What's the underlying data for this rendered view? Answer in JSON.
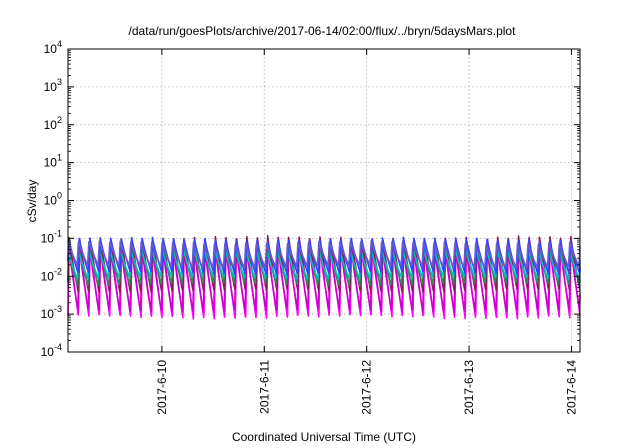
{
  "chart_data": {
    "type": "line",
    "title": "/data/run/goesPlots/archive/2017-06-14/02:00/flux/../bryn/5daysMars.plot",
    "xlabel": "Coordinated Universal Time (UTC)",
    "ylabel": "cSv/day",
    "y_scale": "log",
    "ylim": [
      0.0001,
      10000
    ],
    "y_ticks": [
      {
        "value": 0.0001,
        "base": "10",
        "exp": "-4"
      },
      {
        "value": 0.001,
        "base": "10",
        "exp": "-3"
      },
      {
        "value": 0.01,
        "base": "10",
        "exp": "-2"
      },
      {
        "value": 0.1,
        "base": "10",
        "exp": "-1"
      },
      {
        "value": 1,
        "base": "10",
        "exp": "0"
      },
      {
        "value": 10,
        "base": "10",
        "exp": "1"
      },
      {
        "value": 100,
        "base": "10",
        "exp": "2"
      },
      {
        "value": 1000,
        "base": "10",
        "exp": "3"
      },
      {
        "value": 10000,
        "base": "10",
        "exp": "4"
      }
    ],
    "xlim": [
      "2017-06-09 02:00",
      "2017-06-14 02:00"
    ],
    "x_ticks": [
      {
        "value": "2017-06-10 00:00",
        "label": "2017-6-10"
      },
      {
        "value": "2017-06-11 00:00",
        "label": "2017-6-11"
      },
      {
        "value": "2017-06-12 00:00",
        "label": "2017-6-12"
      },
      {
        "value": "2017-06-13 00:00",
        "label": "2017-6-13"
      },
      {
        "value": "2017-06-14 00:00",
        "label": "2017-6-14"
      }
    ],
    "grid": true,
    "legend": "none",
    "series": [
      {
        "color": "#ff00ff",
        "peak": 0.09,
        "trough": 0.0008,
        "phase": 0.0
      },
      {
        "color": "#cc00cc",
        "peak": 0.07,
        "trough": 0.0012,
        "phase": 0.05
      },
      {
        "color": "#8b1a5a",
        "peak": 0.11,
        "trough": 0.004,
        "phase": 0.02
      },
      {
        "color": "#2e8b57",
        "peak": 0.06,
        "trough": 0.006,
        "phase": 0.08
      },
      {
        "color": "#00c0c0",
        "peak": 0.05,
        "trough": 0.009,
        "phase": 0.1
      },
      {
        "color": "#3344ff",
        "peak": 0.1,
        "trough": 0.012,
        "phase": 0.04
      },
      {
        "color": "#6a5acd",
        "peak": 0.08,
        "trough": 0.018,
        "phase": 0.12
      }
    ],
    "cycle_hours": 2.45
  }
}
